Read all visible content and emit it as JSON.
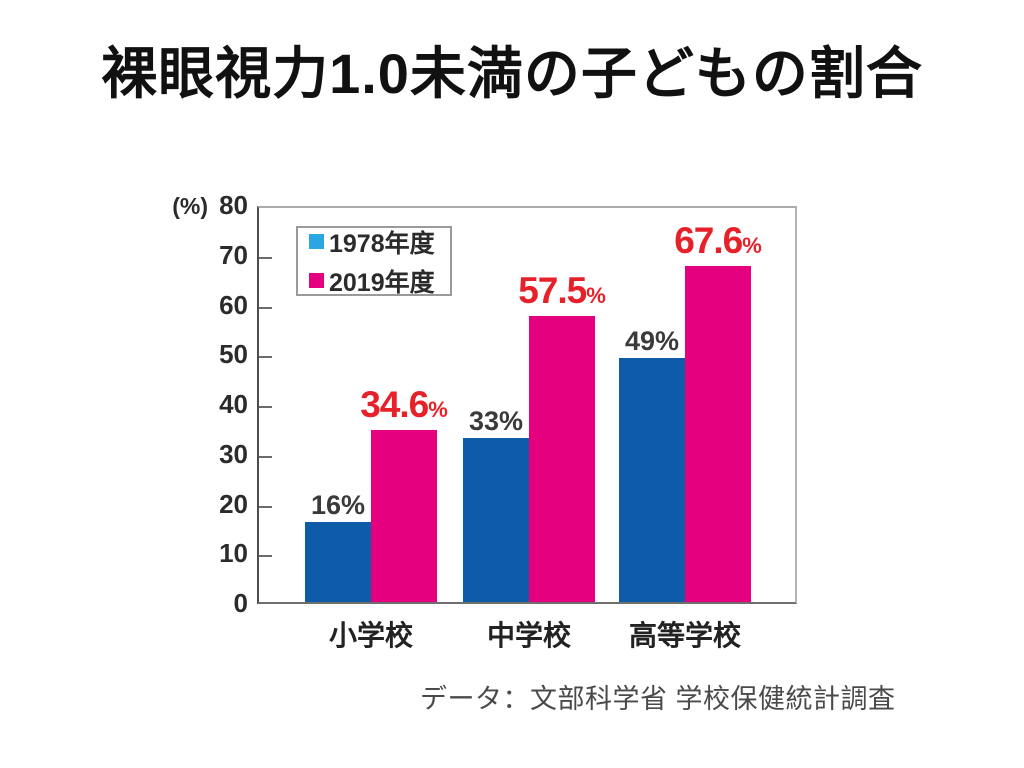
{
  "title": "裸眼視力1.0未満の子どもの割合",
  "axis_unit_label": "(%)",
  "source_note": "データ：文部科学省 学校保健統計調査",
  "legend": {
    "items": [
      {
        "label": "1978年度",
        "color": "#2aa7e0"
      },
      {
        "label": "2019年度",
        "color": "#e4007f"
      }
    ]
  },
  "colors": {
    "bar_1978": "#0e5ca9",
    "bar_2019": "#e4007f",
    "label_1978": "#3a3a3a",
    "label_2019": "#e62129",
    "arrow": "#ffffff"
  },
  "chart_data": {
    "type": "bar",
    "title": "裸眼視力1.0未満の子どもの割合",
    "categories": [
      "小学校",
      "中学校",
      "高等学校"
    ],
    "series": [
      {
        "name": "1978年度",
        "values": [
          16,
          33,
          49
        ],
        "labels": [
          "16%",
          "33%",
          "49%"
        ],
        "bar_color": "#0e5ca9",
        "label_color": "#3a3a3a"
      },
      {
        "name": "2019年度",
        "values": [
          34.6,
          57.5,
          67.6
        ],
        "labels": [
          "34.6",
          "57.5",
          "67.6"
        ],
        "label_suffix": "%",
        "bar_color": "#e4007f",
        "label_color": "#e62129"
      }
    ],
    "xlabel": "",
    "ylabel": "(%)",
    "ylim": [
      0,
      80
    ],
    "yticks": [
      0,
      10,
      20,
      30,
      40,
      50,
      60,
      70,
      80
    ],
    "grid": false,
    "legend_position": "top-left",
    "annotations": "white curved arrow from each 1978 bar up to the 2019 bar"
  }
}
